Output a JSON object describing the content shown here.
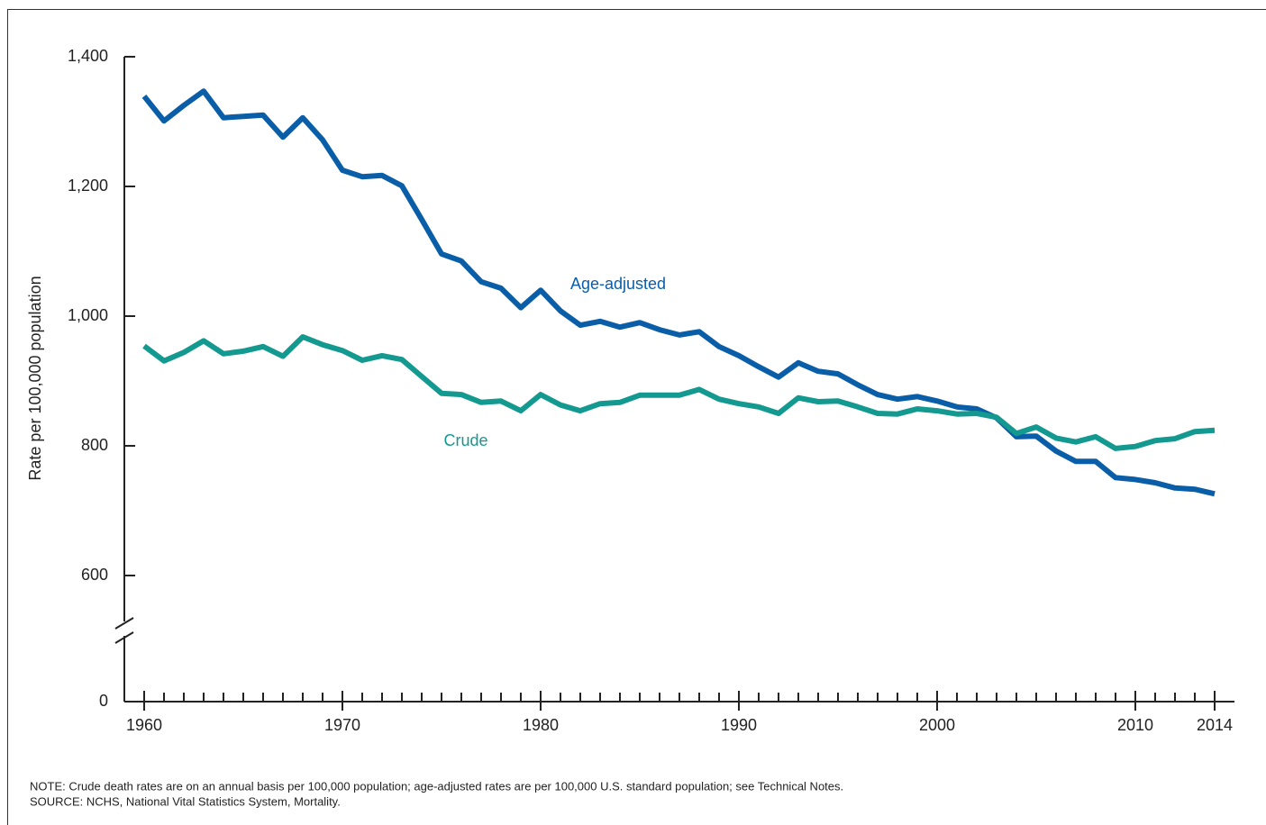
{
  "chart_data": {
    "type": "line",
    "y_label": "Rate per 100,000 population",
    "x": [
      1960,
      1961,
      1962,
      1963,
      1964,
      1965,
      1966,
      1967,
      1968,
      1969,
      1970,
      1971,
      1972,
      1973,
      1974,
      1975,
      1976,
      1977,
      1978,
      1979,
      1980,
      1981,
      1982,
      1983,
      1984,
      1985,
      1986,
      1987,
      1988,
      1989,
      1990,
      1991,
      1992,
      1993,
      1994,
      1995,
      1996,
      1997,
      1998,
      1999,
      2000,
      2001,
      2002,
      2003,
      2004,
      2005,
      2006,
      2007,
      2008,
      2009,
      2010,
      2011,
      2012,
      2013,
      2014
    ],
    "series": [
      {
        "name": "Age-adjusted",
        "color": "#0a5ea8",
        "values": [
          1339,
          1301,
          1325,
          1347,
          1306,
          1308,
          1310,
          1276,
          1306,
          1272,
          1225,
          1215,
          1217,
          1201,
          1149,
          1096,
          1085,
          1053,
          1043,
          1013,
          1040,
          1008,
          986,
          992,
          983,
          990,
          979,
          971,
          976,
          953,
          939,
          922,
          906,
          928,
          915,
          911,
          894,
          879,
          872,
          876,
          869,
          860,
          857,
          843,
          814,
          815,
          792,
          776,
          776,
          751,
          748,
          743,
          735,
          733,
          726
        ]
      },
      {
        "name": "Crude",
        "color": "#13998f",
        "values": [
          954,
          931,
          944,
          962,
          942,
          946,
          953,
          938,
          968,
          956,
          947,
          932,
          939,
          933,
          907,
          881,
          879,
          867,
          869,
          854,
          879,
          863,
          854,
          865,
          867,
          878,
          878,
          878,
          887,
          872,
          865,
          860,
          850,
          874,
          868,
          869,
          860,
          850,
          849,
          857,
          854,
          849,
          850,
          844,
          819,
          829,
          812,
          806,
          814,
          796,
          799,
          808,
          811,
          822,
          824
        ]
      }
    ],
    "xlim": [
      1960,
      2014
    ],
    "xticks": [
      1960,
      1970,
      1980,
      1990,
      2000,
      2010,
      2014
    ],
    "ylim": [
      0,
      1400
    ],
    "yticks": [
      0,
      600,
      800,
      {
        "value": 1000,
        "label": "1,000"
      },
      {
        "value": 1200,
        "label": "1,200"
      },
      {
        "value": 1400,
        "label": "1,400"
      }
    ],
    "y_axis_break": [
      0,
      500
    ],
    "notes": [
      "NOTE: Crude death rates are on an annual basis per 100,000 population; age-adjusted rates are per 100,000 U.S. standard population; see Technical Notes.",
      "SOURCE: NCHS, National Vital Statistics System, Mortality."
    ]
  }
}
